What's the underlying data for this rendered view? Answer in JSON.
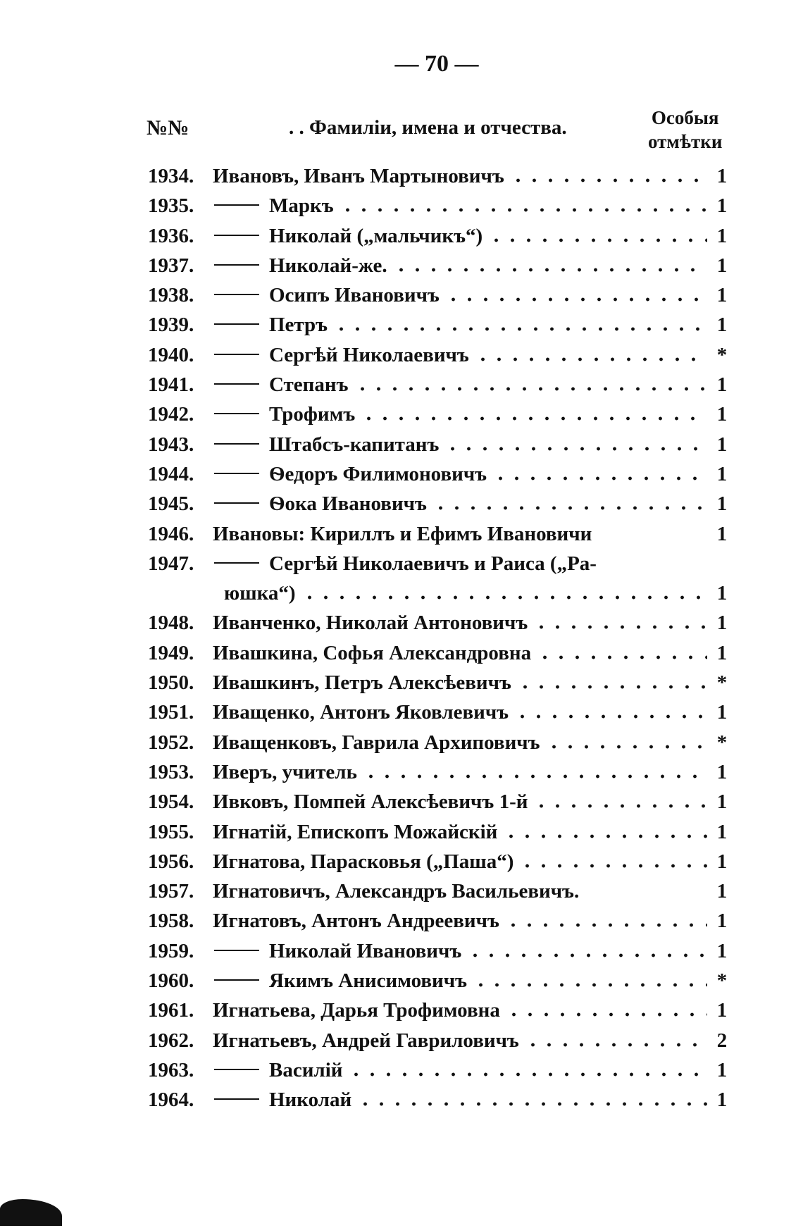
{
  "page_number": "— 70 —",
  "header": {
    "num": "№№",
    "name": ". . Фамиліи, имена и отчества.",
    "mark_line1": "Особыя",
    "mark_line2": "отмѣтки"
  },
  "rows": [
    {
      "num": "1934.",
      "dash": false,
      "name": "Ивановъ, Иванъ Мартыновичъ",
      "mark": "1"
    },
    {
      "num": "1935.",
      "dash": true,
      "name": "Маркъ",
      "mark": "1"
    },
    {
      "num": "1936.",
      "dash": true,
      "name": "Николай („мальчикъ“)",
      "mark": "1"
    },
    {
      "num": "1937.",
      "dash": true,
      "name": "Николай-же.",
      "mark": "1"
    },
    {
      "num": "1938.",
      "dash": true,
      "name": "Осипъ Ивановичъ",
      "mark": "1"
    },
    {
      "num": "1939.",
      "dash": true,
      "name": "Петръ",
      "mark": "1"
    },
    {
      "num": "1940.",
      "dash": true,
      "name": "Сергѣй Николаевичъ",
      "mark": "*"
    },
    {
      "num": "1941.",
      "dash": true,
      "name": "Степанъ",
      "mark": "1"
    },
    {
      "num": "1942.",
      "dash": true,
      "name": "Трофимъ",
      "mark": "1"
    },
    {
      "num": "1943.",
      "dash": true,
      "name": "Штабсъ-капитанъ",
      "mark": "1"
    },
    {
      "num": "1944.",
      "dash": true,
      "name": "Ѳедоръ Филимоновичъ",
      "mark": "1"
    },
    {
      "num": "1945.",
      "dash": true,
      "name": "Ѳока Ивановичъ",
      "mark": "1"
    },
    {
      "num": "1946.",
      "dash": false,
      "name": "Ивановы: Кириллъ и Ефимъ Ивановичи",
      "mark": "1",
      "noleader": true
    },
    {
      "num": "1947.",
      "dash": true,
      "name": "Сергѣй Николаевичъ и Раиса („Ра-",
      "mark": "",
      "noleader": true,
      "continuation": "юшка“)"
    },
    {
      "num": "",
      "dash": false,
      "name": "юшка“)",
      "mark": "1",
      "cont": true
    },
    {
      "num": "1948.",
      "dash": false,
      "name": "Иванченко, Николай Антоновичъ",
      "mark": "1"
    },
    {
      "num": "1949.",
      "dash": false,
      "name": "Ивашкина, Софья Александровна",
      "mark": "1"
    },
    {
      "num": "1950.",
      "dash": false,
      "name": "Ивашкинъ, Петръ Алексѣевичъ",
      "mark": "*"
    },
    {
      "num": "1951.",
      "dash": false,
      "name": "Иващенко, Антонъ Яковлевичъ",
      "mark": "1"
    },
    {
      "num": "1952.",
      "dash": false,
      "name": "Иващенковъ, Гаврила Архиповичъ",
      "mark": "*"
    },
    {
      "num": "1953.",
      "dash": false,
      "name": "Иверъ, учитель",
      "mark": "1"
    },
    {
      "num": "1954.",
      "dash": false,
      "name": "Ивковъ, Помпей Алексѣевичъ 1-й",
      "mark": "1"
    },
    {
      "num": "1955.",
      "dash": false,
      "name": "Игнатій, Епископъ Можайскій",
      "mark": "1"
    },
    {
      "num": "1956.",
      "dash": false,
      "name": "Игнатова, Парасковья („Паша“)",
      "mark": "1"
    },
    {
      "num": "1957.",
      "dash": false,
      "name": "Игнатовичъ, Александръ Васильевичъ.",
      "mark": "1",
      "noleader": true
    },
    {
      "num": "1958.",
      "dash": false,
      "name": "Игнатовъ, Антонъ Андреевичъ",
      "mark": "1"
    },
    {
      "num": "1959.",
      "dash": true,
      "name": "Николай Ивановичъ",
      "mark": "1"
    },
    {
      "num": "1960.",
      "dash": true,
      "name": "Якимъ Анисимовичъ",
      "mark": "*"
    },
    {
      "num": "1961.",
      "dash": false,
      "name": "Игнатьева, Дарья Трофимовна",
      "mark": "1"
    },
    {
      "num": "1962.",
      "dash": false,
      "name": "Игнатьевъ, Андрей Гавриловичъ",
      "mark": "2"
    },
    {
      "num": "1963.",
      "dash": true,
      "name": "Василій",
      "mark": "1"
    },
    {
      "num": "1964.",
      "dash": true,
      "name": "Николай",
      "mark": "1"
    }
  ]
}
